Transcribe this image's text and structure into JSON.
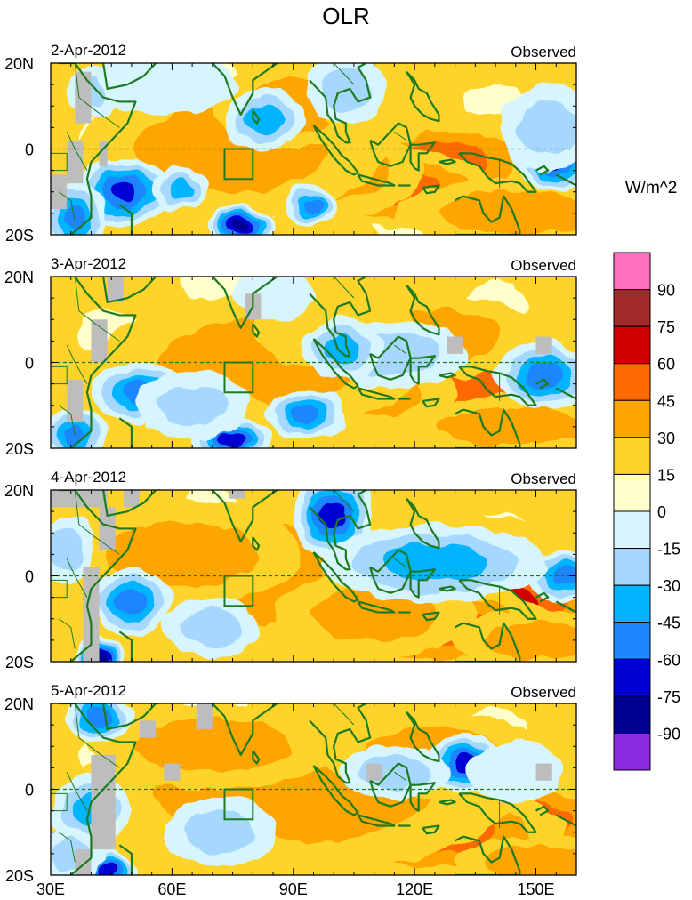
{
  "chart_data": {
    "type": "heatmap",
    "title": "OLR",
    "colorbar": {
      "label": "W/m^2",
      "levels": [
        "90",
        "75",
        "60",
        "45",
        "30",
        "15",
        "0",
        "-15",
        "-30",
        "-45",
        "-60",
        "-75",
        "-90"
      ],
      "colors": [
        "#ff70c0",
        "#a52a2a",
        "#d00000",
        "#ff6a00",
        "#ffa500",
        "#ffd42a",
        "#ffffcc",
        "#d6f5ff",
        "#a6d8ff",
        "#00b4ff",
        "#1e86ff",
        "#0000d4",
        "#000090",
        "#8b2be2"
      ]
    },
    "x_ticks": [
      "30E",
      "60E",
      "90E",
      "120E",
      "150E"
    ],
    "x_tick_values": [
      30,
      60,
      90,
      120,
      150
    ],
    "xlim": [
      30,
      160
    ],
    "y_ticks": [
      "20N",
      "0",
      "20S"
    ],
    "y_tick_values": [
      20,
      0,
      -20
    ],
    "ylim": [
      -20,
      20
    ],
    "panels": [
      {
        "date": "2-Apr-2012",
        "label": "Observed",
        "blobs": [
          [
            138,
            -6,
            40,
            14,
            75
          ],
          [
            127,
            -3,
            25,
            10,
            45
          ],
          [
            115,
            -9,
            25,
            9,
            45
          ],
          [
            100,
            -5,
            22,
            11,
            30
          ],
          [
            75,
            0,
            38,
            16,
            30
          ],
          [
            90,
            10,
            20,
            10,
            30
          ],
          [
            145,
            -15,
            30,
            8,
            30
          ],
          [
            112,
            10,
            15,
            9,
            15
          ],
          [
            55,
            -17,
            30,
            8,
            15
          ],
          [
            155,
            -3,
            9,
            7,
            -75
          ],
          [
            153,
            5,
            12,
            10,
            -30
          ],
          [
            58,
            15,
            18,
            7,
            -15
          ],
          [
            48,
            -10,
            12,
            8,
            -75
          ],
          [
            77,
            -18,
            8,
            5,
            -90
          ],
          [
            83,
            7,
            10,
            7,
            -45
          ],
          [
            103,
            14,
            10,
            8,
            -30
          ],
          [
            36,
            -16,
            8,
            8,
            -60
          ],
          [
            95,
            -13,
            6,
            5,
            -60
          ],
          [
            62,
            -9,
            7,
            5,
            -45
          ],
          [
            40,
            13,
            6,
            6,
            -30
          ]
        ],
        "gray": [
          [
            30,
            -14,
            34,
            -6
          ],
          [
            34,
            -8,
            38,
            2
          ],
          [
            36,
            6,
            40,
            18
          ],
          [
            42,
            -4,
            44,
            2
          ]
        ]
      },
      {
        "date": "3-Apr-2012",
        "label": "Observed",
        "blobs": [
          [
            140,
            -5,
            30,
            13,
            60
          ],
          [
            128,
            -7,
            38,
            13,
            45
          ],
          [
            108,
            -7,
            22,
            9,
            30
          ],
          [
            82,
            0,
            40,
            16,
            30
          ],
          [
            125,
            6,
            25,
            10,
            30
          ],
          [
            145,
            -15,
            30,
            7,
            30
          ],
          [
            100,
            8,
            20,
            10,
            15
          ],
          [
            60,
            -15,
            30,
            9,
            15
          ],
          [
            152,
            -3,
            12,
            8,
            -60
          ],
          [
            115,
            2,
            18,
            8,
            -30
          ],
          [
            102,
            3,
            10,
            7,
            -45
          ],
          [
            93,
            -12,
            10,
            6,
            -60
          ],
          [
            75,
            -18,
            10,
            5,
            -75
          ],
          [
            52,
            -7,
            12,
            7,
            -60
          ],
          [
            36,
            -17,
            8,
            6,
            -60
          ],
          [
            85,
            16,
            10,
            6,
            -15
          ],
          [
            65,
            -10,
            14,
            8,
            -30
          ]
        ],
        "gray": [
          [
            40,
            0,
            44,
            10
          ],
          [
            34,
            -14,
            38,
            -4
          ],
          [
            44,
            14,
            48,
            20
          ],
          [
            78,
            10,
            82,
            16
          ],
          [
            128,
            2,
            132,
            6
          ],
          [
            150,
            2,
            154,
            6
          ]
        ]
      },
      {
        "date": "4-Apr-2012",
        "label": "Observed",
        "blobs": [
          [
            138,
            -6,
            34,
            14,
            60
          ],
          [
            125,
            -12,
            30,
            10,
            45
          ],
          [
            88,
            0,
            42,
            18,
            30
          ],
          [
            130,
            5,
            25,
            10,
            30
          ],
          [
            110,
            -9,
            25,
            10,
            30
          ],
          [
            62,
            5,
            30,
            12,
            30
          ],
          [
            150,
            -15,
            20,
            7,
            30
          ],
          [
            60,
            -15,
            25,
            8,
            15
          ],
          [
            100,
            14,
            10,
            10,
            -75
          ],
          [
            157,
            0,
            9,
            6,
            -60
          ],
          [
            125,
            3,
            28,
            9,
            -45
          ],
          [
            50,
            -6,
            10,
            8,
            -60
          ],
          [
            42,
            -19,
            6,
            5,
            -90
          ],
          [
            70,
            -12,
            12,
            7,
            -30
          ],
          [
            34,
            6,
            7,
            8,
            -30
          ]
        ],
        "gray": [
          [
            30,
            16,
            44,
            20
          ],
          [
            38,
            -20,
            42,
            2
          ],
          [
            42,
            6,
            46,
            16
          ],
          [
            48,
            16,
            52,
            20
          ],
          [
            74,
            18,
            78,
            20
          ]
        ]
      },
      {
        "date": "5-Apr-2012",
        "label": "Observed",
        "blobs": [
          [
            140,
            -8,
            32,
            11,
            60
          ],
          [
            125,
            -10,
            32,
            11,
            45
          ],
          [
            90,
            -1,
            55,
            18,
            30
          ],
          [
            70,
            10,
            30,
            10,
            30
          ],
          [
            125,
            8,
            28,
            10,
            30
          ],
          [
            60,
            -15,
            30,
            8,
            15
          ],
          [
            150,
            -17,
            20,
            6,
            30
          ],
          [
            133,
            6,
            10,
            7,
            -75
          ],
          [
            115,
            4,
            14,
            6,
            -30
          ],
          [
            42,
            17,
            8,
            6,
            -60
          ],
          [
            44,
            -19,
            7,
            5,
            -75
          ],
          [
            40,
            -5,
            10,
            8,
            -45
          ],
          [
            72,
            -10,
            14,
            8,
            -30
          ],
          [
            145,
            4,
            12,
            7,
            -15
          ],
          [
            35,
            -15,
            8,
            6,
            -30
          ]
        ],
        "gray": [
          [
            40,
            -14,
            46,
            8
          ],
          [
            52,
            12,
            56,
            16
          ],
          [
            58,
            2,
            62,
            6
          ],
          [
            66,
            14,
            70,
            20
          ],
          [
            108,
            2,
            112,
            6
          ],
          [
            150,
            2,
            154,
            6
          ],
          [
            36,
            -20,
            40,
            -14
          ]
        ]
      }
    ]
  }
}
